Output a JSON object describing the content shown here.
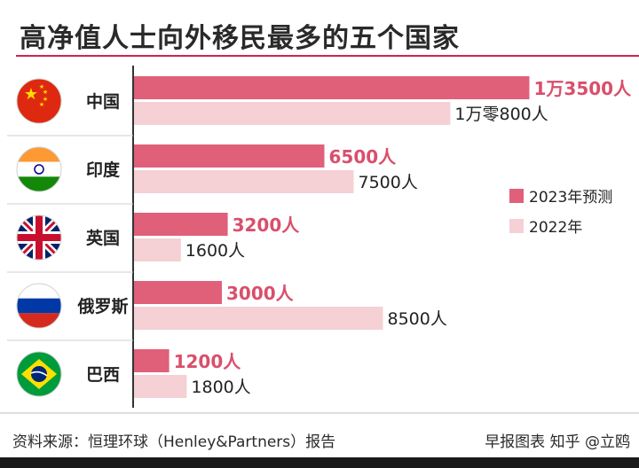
{
  "title": "高净值人士向外移民最多的五个国家",
  "source": "资料来源：恒理环球（Henley&Partners）报告",
  "credit": "早报图表  知乎 @立鸥",
  "colors": {
    "series_2023": "#e0607a",
    "series_2022": "#f5d0d5",
    "label_2023": "#d94f6c",
    "label_2022": "#222222",
    "accent": "#d6204f"
  },
  "chart_data": {
    "type": "bar",
    "orientation": "horizontal",
    "categories": [
      "中国",
      "印度",
      "英国",
      "俄罗斯",
      "巴西"
    ],
    "flags": [
      "china-flag-icon",
      "india-flag-icon",
      "uk-flag-icon",
      "russia-flag-icon",
      "brazil-flag-icon"
    ],
    "series": [
      {
        "name": "2023年预测",
        "values": [
          13500,
          6500,
          3200,
          3000,
          1200
        ],
        "labels": [
          "1万3500人",
          "6500人",
          "3200人",
          "3000人",
          "1200人"
        ]
      },
      {
        "name": "2022年",
        "values": [
          10800,
          7500,
          1600,
          8500,
          1800
        ],
        "labels": [
          "1万零800人",
          "7500人",
          "1600人",
          "8500人",
          "1800人"
        ]
      }
    ],
    "legend_position": "right",
    "xlim": [
      0,
      14000
    ],
    "grid": false
  }
}
